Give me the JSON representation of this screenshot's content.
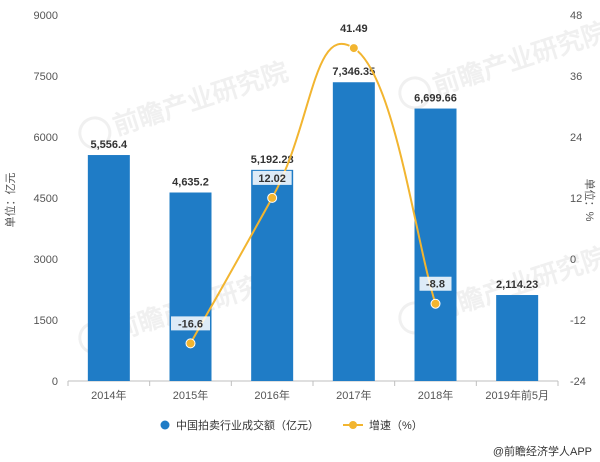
{
  "chart_data": {
    "type": "bar",
    "categories": [
      "2014年",
      "2015年",
      "2016年",
      "2017年",
      "2018年",
      "2019年前5月"
    ],
    "series": [
      {
        "name": "中国拍卖行业成交额（亿元）",
        "type": "bar",
        "axis": "left",
        "values": [
          5556.4,
          4635.2,
          5192.28,
          7346.35,
          6699.66,
          2114.23
        ],
        "labels": [
          "5,556.4",
          "4,635.2",
          "5,192.28",
          "7,346.35",
          "6,699.66",
          "2,114.23"
        ],
        "color": "#1f7cc6"
      },
      {
        "name": "增速（%）",
        "type": "line",
        "axis": "right",
        "values": [
          null,
          -16.6,
          12.02,
          41.49,
          -8.8,
          null
        ],
        "labels": [
          "",
          "-16.6",
          "12.02",
          "41.49",
          "-8.8",
          ""
        ],
        "color": "#f2b530"
      }
    ],
    "ylabel": "单位：亿元",
    "y2label": "单位：%",
    "ylim": [
      0,
      9000
    ],
    "yticks": [
      "0",
      "1500",
      "3000",
      "4500",
      "6000",
      "7500",
      "9000"
    ],
    "y2lim": [
      -24,
      48
    ],
    "y2ticks": [
      "-24",
      "-12",
      "0",
      "12",
      "24",
      "36",
      "48"
    ],
    "grid": false,
    "legend": "bottom-center"
  },
  "credit": "@前瞻经济学人APP",
  "watermark": "前瞻产业研究院"
}
